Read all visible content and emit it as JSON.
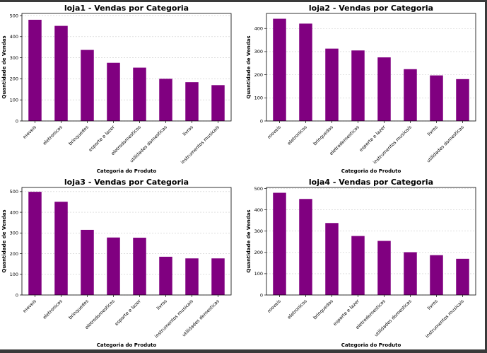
{
  "bar_color": "#800080",
  "chart_data": [
    {
      "type": "bar",
      "title": "loja1 - Vendas por Categoria",
      "xlabel": "Categoria do Produto",
      "ylabel": "Quantidade de Vendas",
      "ylim": [
        0,
        510
      ],
      "yticks": [
        0,
        100,
        200,
        300,
        400,
        500
      ],
      "grid": true,
      "categories": [
        "moveis",
        "eletronicos",
        "brinquedos",
        "esporte e lazer",
        "eletrodomesticos",
        "utilidades domesticas",
        "livros",
        "instrumentos musicais"
      ],
      "values": [
        480,
        451,
        337,
        276,
        253,
        200,
        184,
        170
      ]
    },
    {
      "type": "bar",
      "title": "loja2 - Vendas por Categoria",
      "xlabel": "Categoria do Produto",
      "ylabel": "Quantidade de Vendas",
      "ylim": [
        0,
        465
      ],
      "yticks": [
        0,
        100,
        200,
        300,
        400
      ],
      "grid": true,
      "categories": [
        "moveis",
        "eletronicos",
        "brinquedos",
        "eletrodomesticos",
        "esporte e lazer",
        "instrumentos musicais",
        "livros",
        "utilidades domesticas"
      ],
      "values": [
        442,
        421,
        313,
        305,
        275,
        224,
        197,
        181
      ]
    },
    {
      "type": "bar",
      "title": "loja3 - Vendas por Categoria",
      "xlabel": "Categoria do Produto",
      "ylabel": "Quantidade de Vendas",
      "ylim": [
        0,
        520
      ],
      "yticks": [
        0,
        100,
        200,
        300,
        400,
        500
      ],
      "grid": true,
      "categories": [
        "moveis",
        "eletronicos",
        "brinquedos",
        "eletrodomesticos",
        "esporte e lazer",
        "livros",
        "instrumentos musicais",
        "utilidades domesticas"
      ],
      "values": [
        499,
        451,
        315,
        278,
        277,
        185,
        177,
        177
      ]
    },
    {
      "type": "bar",
      "title": "loja4 - Vendas por Categoria",
      "xlabel": "Categoria do Produto",
      "ylabel": "Quantidade de Vendas",
      "ylim": [
        0,
        505
      ],
      "yticks": [
        0,
        100,
        200,
        300,
        400,
        500
      ],
      "grid": true,
      "categories": [
        "moveis",
        "eletronicos",
        "brinquedos",
        "esporte e lazer",
        "eletrodomesticos",
        "utilidades domesticas",
        "livros",
        "instrumentos musicais"
      ],
      "values": [
        480,
        451,
        338,
        277,
        254,
        201,
        187,
        170
      ]
    }
  ]
}
